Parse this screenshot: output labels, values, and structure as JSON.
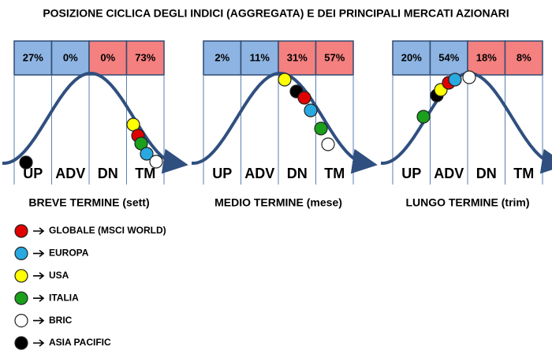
{
  "title": "POSIZIONE CICLICA DEGLI INDICI (AGGREGATA) E DEI PRINCIPALI MERCATI AZIONARI",
  "panels": [
    {
      "percentages": [
        "27%",
        "0%",
        "0%",
        "73%"
      ],
      "phases": [
        "UP",
        "ADV",
        "DN",
        "TM"
      ],
      "label": "BREVE TERMINE (sett)"
    },
    {
      "percentages": [
        "2%",
        "11%",
        "31%",
        "57%"
      ],
      "phases": [
        "UP",
        "ADV",
        "DN",
        "TM"
      ],
      "label": "MEDIO TERMINE (mese)"
    },
    {
      "percentages": [
        "20%",
        "54%",
        "18%",
        "8%"
      ],
      "phases": [
        "UP",
        "ADV",
        "DN",
        "TM"
      ],
      "label": "LUNGO TERMINE (trim)"
    }
  ],
  "legend": [
    "GLOBALE (MSCI WORLD)",
    "EUROPA",
    "USA",
    "ITALIA",
    "BRIC",
    "ASIA PACIFIC"
  ]
}
